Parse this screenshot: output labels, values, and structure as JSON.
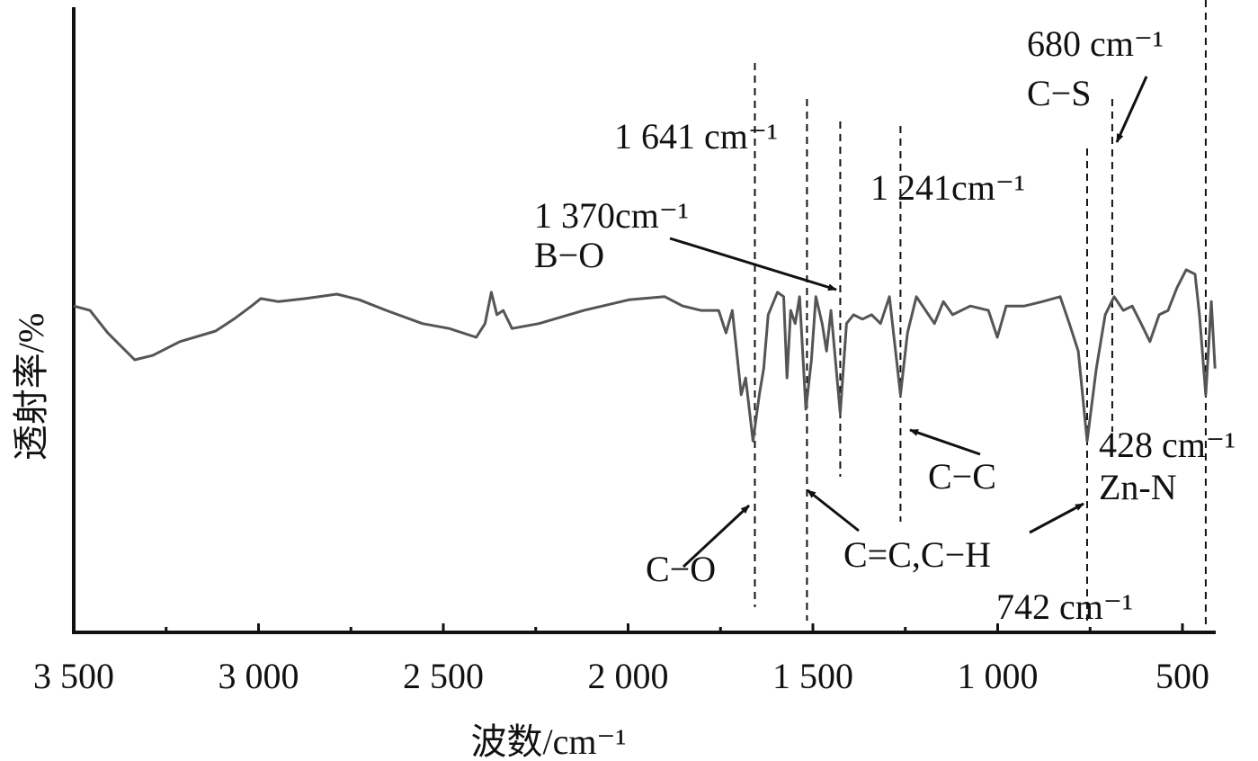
{
  "chart_data": {
    "type": "line",
    "x_label": "波数/cm⁻¹",
    "y_label": "透射率/%",
    "xlim": [
      3500,
      410
    ],
    "ylim": [
      0,
      100
    ],
    "xticks": [
      {
        "value": 3500,
        "label": "3 500"
      },
      {
        "value": 3000,
        "label": "3 000"
      },
      {
        "value": 2500,
        "label": "2 500"
      },
      {
        "value": 2000,
        "label": "2 000"
      },
      {
        "value": 1500,
        "label": "1 500"
      },
      {
        "value": 1000,
        "label": "1 000"
      },
      500
    ],
    "xminor_ticks": [
      3250,
      2750,
      2250,
      1750,
      1250,
      750
    ],
    "series": [
      {
        "color": "#555555",
        "x": [
          3500,
          3456,
          3408,
          3335,
          3286,
          3213,
          3116,
          3067,
          3019,
          2994,
          2946,
          2873,
          2788,
          2727,
          2654,
          2557,
          2484,
          2411,
          2387,
          2370,
          2355,
          2338,
          2314,
          2241,
          2120,
          1998,
          1901,
          1852,
          1803,
          1755,
          1735,
          1718,
          1694,
          1682,
          1662,
          1645,
          1633,
          1621,
          1596,
          1579,
          1570,
          1560,
          1548,
          1536,
          1519,
          1504,
          1492,
          1475,
          1463,
          1451,
          1426,
          1409,
          1390,
          1366,
          1341,
          1317,
          1293,
          1263,
          1244,
          1220,
          1195,
          1171,
          1147,
          1122,
          1074,
          1025,
          1001,
          977,
          928,
          879,
          831,
          806,
          782,
          758,
          733,
          709,
          685,
          660,
          636,
          612,
          588,
          563,
          539,
          515,
          490,
          466,
          454,
          437,
          422,
          412
        ],
        "values": [
          52.2,
          51.5,
          47.9,
          43.6,
          44.3,
          46.5,
          48.2,
          50.1,
          52.2,
          53.4,
          52.9,
          53.4,
          54.1,
          53.2,
          51.5,
          49.4,
          48.6,
          47.2,
          49.4,
          54.4,
          50.8,
          51.5,
          48.6,
          49.4,
          51.5,
          53.2,
          53.7,
          52.2,
          51.5,
          51.5,
          47.9,
          51.5,
          38.0,
          40.7,
          30.6,
          38.0,
          42.2,
          50.8,
          54.4,
          53.7,
          40.7,
          51.5,
          49.4,
          53.7,
          35.7,
          43.6,
          53.7,
          49.4,
          45.0,
          51.5,
          35.0,
          49.4,
          50.8,
          50.1,
          50.8,
          49.4,
          53.7,
          38.0,
          47.9,
          53.7,
          51.5,
          49.4,
          52.9,
          50.8,
          52.2,
          51.5,
          47.2,
          52.2,
          52.2,
          52.9,
          53.7,
          49.4,
          45.0,
          30.6,
          42.2,
          50.8,
          53.7,
          51.5,
          52.2,
          49.4,
          46.5,
          50.8,
          51.5,
          55.1,
          58.0,
          57.3,
          50.8,
          38.0,
          52.9,
          42.2
        ]
      }
    ],
    "reference_lines": [
      1657,
      1516,
      1426,
      1263,
      758,
      690,
      437
    ],
    "annotations": [
      "680 cm⁻¹",
      "C−S",
      "1 641 cm⁻¹",
      "1 241cm⁻¹",
      "1 370cm⁻¹",
      "B−O",
      "428 cm⁻¹",
      "Zn-N",
      "C−C",
      "C−O",
      "C=C,C−H",
      "742 cm⁻¹"
    ]
  }
}
